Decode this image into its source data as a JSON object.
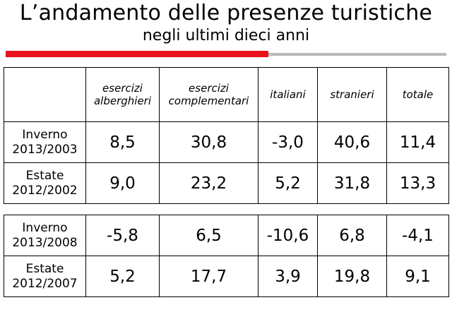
{
  "title": "L’andamento delle presenze turistiche",
  "subtitle": "negli ultimi dieci anni",
  "headers": [
    "",
    "esercizi alberghieri",
    "esercizi complementari",
    "italiani",
    "stranieri",
    "totale"
  ],
  "table1": [
    {
      "label1": "Inverno",
      "label2": "2013/2003",
      "values": [
        "8,5",
        "30,8",
        "-3,0",
        "40,6",
        "11,4"
      ]
    },
    {
      "label1": "Estate",
      "label2": "2012/2002",
      "values": [
        "9,0",
        "23,2",
        "5,2",
        "31,8",
        "13,3"
      ]
    }
  ],
  "table2": [
    {
      "label1": "Inverno",
      "label2": "2013/2008",
      "values": [
        "-5,8",
        "6,5",
        "-10,6",
        "6,8",
        "-4,1"
      ]
    },
    {
      "label1": "Estate",
      "label2": "2012/2007",
      "values": [
        "5,2",
        "17,7",
        "3,9",
        "19,8",
        "9,1"
      ]
    }
  ]
}
